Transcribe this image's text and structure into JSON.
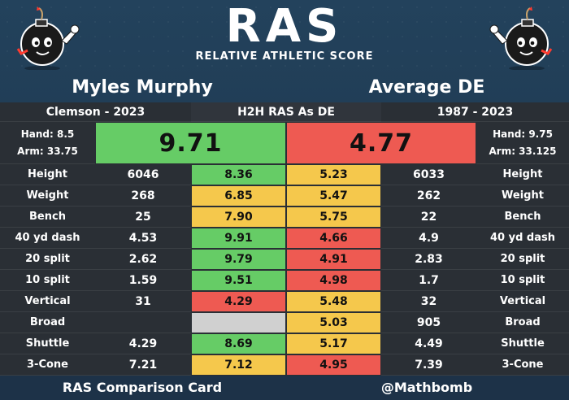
{
  "header": {
    "logo": "RAS",
    "subtitle": "RELATIVE ATHLETIC SCORE"
  },
  "players": {
    "left_name": "Myles Murphy",
    "right_name": "Average DE"
  },
  "subheader": {
    "left": "Clemson - 2023",
    "center": "H2H RAS As DE",
    "right": "1987 - 2023"
  },
  "score": {
    "left_hand": "Hand: 8.5",
    "left_arm": "Arm: 33.75",
    "left_ras": "9.71",
    "right_ras": "4.77",
    "right_hand": "Hand: 9.75",
    "right_arm": "Arm: 33.125",
    "left_color": "green",
    "right_color": "red"
  },
  "metrics": [
    {
      "label": "Height",
      "left_value": "6046",
      "left_score": "8.36",
      "left_color": "green",
      "right_score": "5.23",
      "right_color": "yellow",
      "right_value": "6033"
    },
    {
      "label": "Weight",
      "left_value": "268",
      "left_score": "6.85",
      "left_color": "yellow",
      "right_score": "5.47",
      "right_color": "yellow",
      "right_value": "262"
    },
    {
      "label": "Bench",
      "left_value": "25",
      "left_score": "7.90",
      "left_color": "yellow",
      "right_score": "5.75",
      "right_color": "yellow",
      "right_value": "22"
    },
    {
      "label": "40 yd dash",
      "left_value": "4.53",
      "left_score": "9.91",
      "left_color": "green",
      "right_score": "4.66",
      "right_color": "red",
      "right_value": "4.9"
    },
    {
      "label": "20 split",
      "left_value": "2.62",
      "left_score": "9.79",
      "left_color": "green",
      "right_score": "4.91",
      "right_color": "red",
      "right_value": "2.83"
    },
    {
      "label": "10 split",
      "left_value": "1.59",
      "left_score": "9.51",
      "left_color": "green",
      "right_score": "4.98",
      "right_color": "red",
      "right_value": "1.7"
    },
    {
      "label": "Vertical",
      "left_value": "31",
      "left_score": "4.29",
      "left_color": "red",
      "right_score": "5.48",
      "right_color": "yellow",
      "right_value": "32"
    },
    {
      "label": "Broad",
      "left_value": "",
      "left_score": "",
      "left_color": "gray",
      "right_score": "5.03",
      "right_color": "yellow",
      "right_value": "905"
    },
    {
      "label": "Shuttle",
      "left_value": "4.29",
      "left_score": "8.69",
      "left_color": "green",
      "right_score": "5.17",
      "right_color": "yellow",
      "right_value": "4.49"
    },
    {
      "label": "3-Cone",
      "left_value": "7.21",
      "left_score": "7.12",
      "left_color": "yellow",
      "right_score": "4.95",
      "right_color": "red",
      "right_value": "7.39"
    }
  ],
  "footer": {
    "left": "RAS Comparison Card",
    "right": "@Mathbomb"
  },
  "colors": {
    "green": "#66cc66",
    "yellow": "#f5c84c",
    "red": "#ee5a52",
    "gray": "#d0d0d0",
    "background": "#1e3850",
    "cell_dark": "#2a2f35"
  },
  "icons": {
    "left_mascot": "bomb-mascot-icon",
    "right_mascot": "bomb-mascot-icon"
  }
}
